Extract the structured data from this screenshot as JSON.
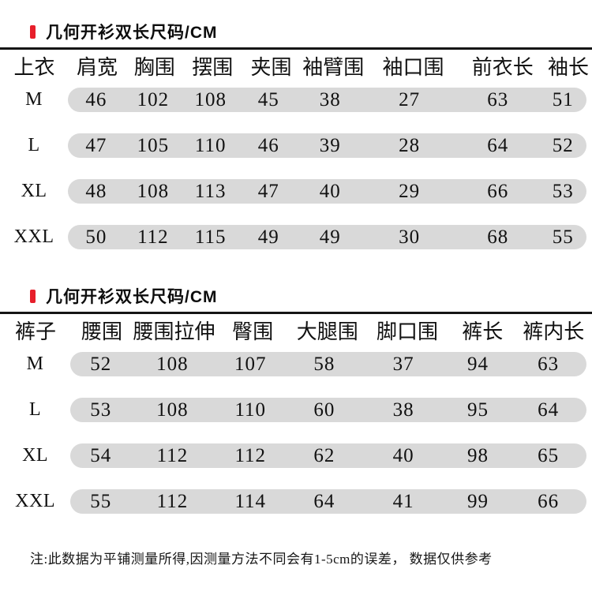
{
  "colors": {
    "accent_red": "#e71f2b",
    "pill_gray": "#d9d9d9",
    "text": "#111111",
    "background": "#ffffff"
  },
  "tables": [
    {
      "title": "几何开衫双长尺码/CM",
      "headers": [
        "上衣",
        "肩宽",
        "胸围",
        "摆围",
        "夹围",
        "袖臂围",
        "袖口围",
        "前衣长",
        "袖长"
      ],
      "rows": [
        {
          "size": "M",
          "values": [
            "46",
            "102",
            "108",
            "45",
            "38",
            "27",
            "63",
            "51"
          ]
        },
        {
          "size": "L",
          "values": [
            "47",
            "105",
            "110",
            "46",
            "39",
            "28",
            "64",
            "52"
          ]
        },
        {
          "size": "XL",
          "values": [
            "48",
            "108",
            "113",
            "47",
            "40",
            "29",
            "66",
            "53"
          ]
        },
        {
          "size": "XXL",
          "values": [
            "50",
            "112",
            "115",
            "49",
            "49",
            "30",
            "68",
            "55"
          ]
        }
      ]
    },
    {
      "title": "几何开衫双长尺码/CM",
      "headers": [
        "裤子",
        "腰围",
        "腰围拉伸",
        "臀围",
        "大腿围",
        "脚口围",
        "裤长",
        "裤内长"
      ],
      "rows": [
        {
          "size": "M",
          "values": [
            "52",
            "108",
            "107",
            "58",
            "37",
            "94",
            "63"
          ]
        },
        {
          "size": "L",
          "values": [
            "53",
            "108",
            "110",
            "60",
            "38",
            "95",
            "64"
          ]
        },
        {
          "size": "XL",
          "values": [
            "54",
            "112",
            "112",
            "62",
            "40",
            "98",
            "65"
          ]
        },
        {
          "size": "XXL",
          "values": [
            "55",
            "112",
            "114",
            "64",
            "41",
            "99",
            "66"
          ]
        }
      ]
    }
  ],
  "note": "注:此数据为平铺测量所得,因测量方法不同会有1-5cm的误差， 数据仅供参考"
}
